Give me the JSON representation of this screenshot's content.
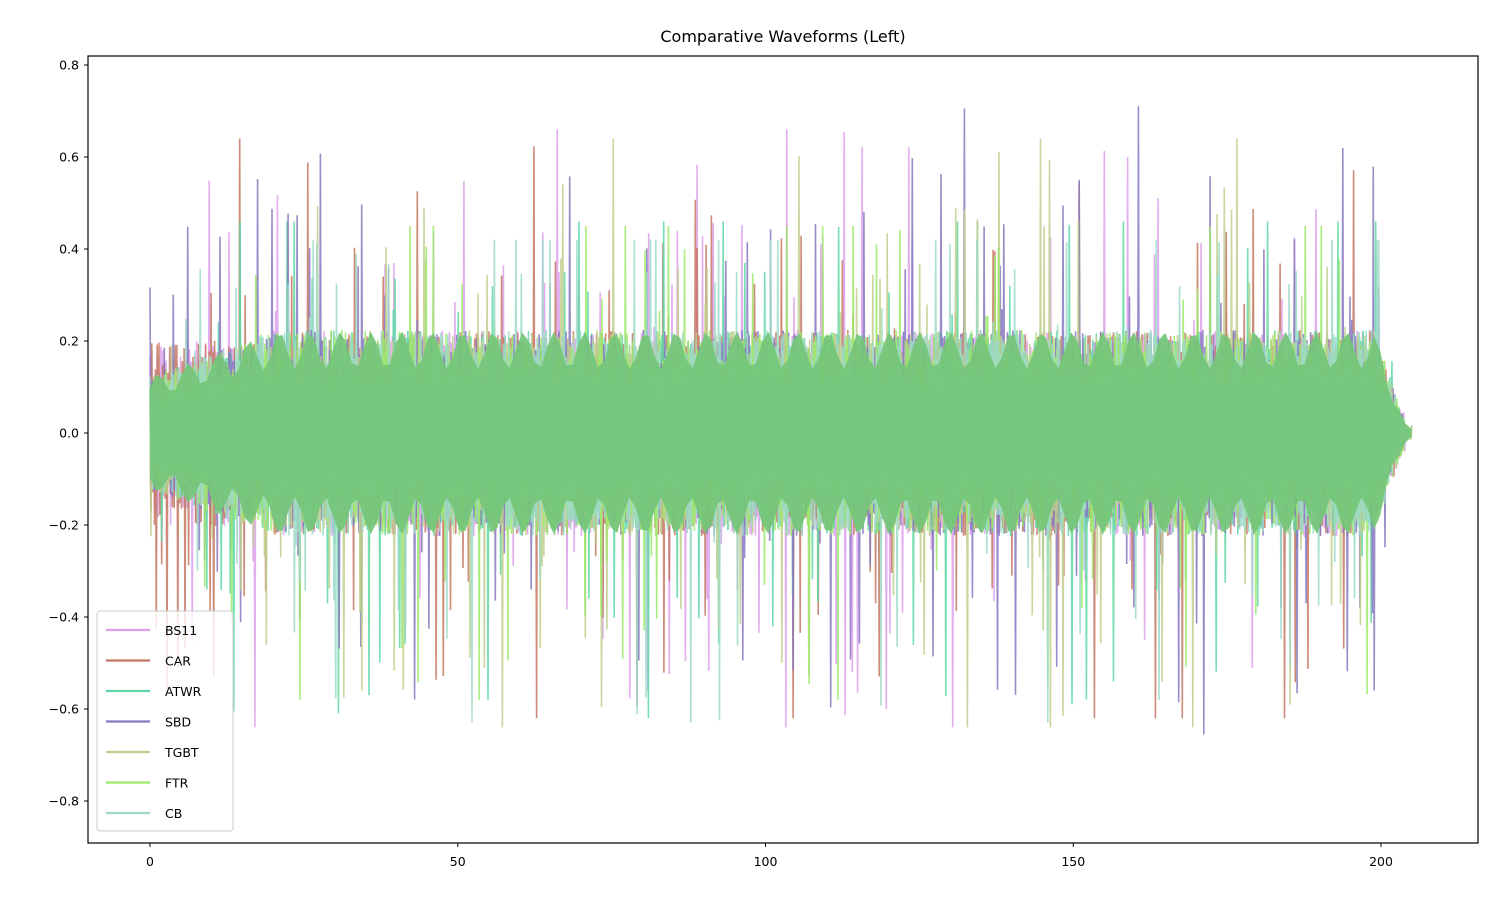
{
  "chart_data": {
    "type": "line",
    "title": "Comparative Waveforms (Left)",
    "xlabel": "",
    "ylabel": "",
    "xlim": [
      -10,
      216
    ],
    "ylim": [
      -0.89,
      0.82
    ],
    "xticks": [
      0,
      50,
      100,
      150,
      200
    ],
    "xtick_labels": [
      "0",
      "50",
      "100",
      "150",
      "200"
    ],
    "yticks": [
      0.8,
      0.6,
      0.4,
      0.2,
      0.0,
      -0.2,
      -0.4,
      -0.6,
      -0.8
    ],
    "ytick_labels": [
      "0.8",
      "0.6",
      "0.4",
      "0.2",
      "0.0",
      "−0.2",
      "−0.4",
      "−0.6",
      "−0.8"
    ],
    "grid": false,
    "legend_position": "lower left",
    "x_extent": [
      0,
      205
    ],
    "series": [
      {
        "name": "BS11",
        "color": "#dda0ec",
        "approx_peak": 0.66,
        "approx_trough": -0.64
      },
      {
        "name": "CAR",
        "color": "#c47763",
        "approx_peak": 0.64,
        "approx_trough": -0.62
      },
      {
        "name": "ATWR",
        "color": "#5fd8a4",
        "approx_peak": 0.46,
        "approx_trough": -0.62
      },
      {
        "name": "SBD",
        "color": "#8878bf",
        "approx_peak": 0.74,
        "approx_trough": -0.81
      },
      {
        "name": "TGBT",
        "color": "#bfcf8c",
        "approx_peak": 0.64,
        "approx_trough": -0.64
      },
      {
        "name": "FTR",
        "color": "#9cea6a",
        "approx_peak": 0.45,
        "approx_trough": -0.58
      },
      {
        "name": "CB",
        "color": "#9ddac8",
        "approx_peak": 0.42,
        "approx_trough": -0.63
      }
    ],
    "envelope_note": "Dense audio waveforms spanning x=0..~205; core amplitude ~±0.2, peaks to ~±0.7; taper near x≈200-205"
  },
  "legend": {
    "items": [
      {
        "label": "BS11",
        "color": "#dda0ec"
      },
      {
        "label": "CAR",
        "color": "#c47763"
      },
      {
        "label": "ATWR",
        "color": "#5fd8a4"
      },
      {
        "label": "SBD",
        "color": "#8878bf"
      },
      {
        "label": "TGBT",
        "color": "#bfcf8c"
      },
      {
        "label": "FTR",
        "color": "#9cea6a"
      },
      {
        "label": "CB",
        "color": "#9ddac8"
      }
    ]
  }
}
